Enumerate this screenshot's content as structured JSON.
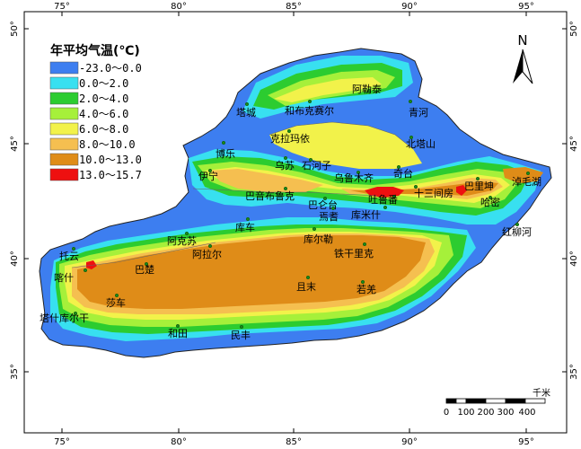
{
  "legend": {
    "title": "年平均气温(℃)",
    "items": [
      {
        "label": "-23.0～0.0",
        "color": "#3d7ef0"
      },
      {
        "label": "0.0～2.0",
        "color": "#38e0f0"
      },
      {
        "label": "2.0～4.0",
        "color": "#2ccc30"
      },
      {
        "label": "4.0～6.0",
        "color": "#a6f03a"
      },
      {
        "label": "6.0～8.0",
        "color": "#f2f24a"
      },
      {
        "label": "8.0～10.0",
        "color": "#f5bf50"
      },
      {
        "label": "10.0～13.0",
        "color": "#df8c18"
      },
      {
        "label": "13.0～15.7",
        "color": "#ee1010"
      }
    ]
  },
  "north_arrow": {
    "label": "N"
  },
  "scale_bar": {
    "unit": "千米",
    "ticks": [
      "0",
      "100",
      "200",
      "300",
      "400"
    ]
  },
  "axes": {
    "longitude": [
      "75°",
      "80°",
      "85°",
      "90°",
      "95°"
    ],
    "latitude": [
      "50°",
      "45°",
      "40°",
      "35°"
    ]
  },
  "cities": [
    "阿勒泰",
    "塔城",
    "和布克赛尔",
    "青河",
    "克拉玛依",
    "北塔山",
    "博乐",
    "乌苏",
    "石河子",
    "乌鲁木齐",
    "奇台",
    "伊宁",
    "巴音布鲁克",
    "巴仑台",
    "吐鲁番",
    "十三间房",
    "巴里坤",
    "淖毛湖",
    "哈密",
    "焉耆",
    "库米什",
    "红柳河",
    "库车",
    "阿克苏",
    "阿拉尔",
    "库尔勒",
    "铁干里克",
    "托云",
    "喀什",
    "巴楚",
    "莎车",
    "且末",
    "若羌",
    "塔什库尔干",
    "和田",
    "民丰"
  ]
}
